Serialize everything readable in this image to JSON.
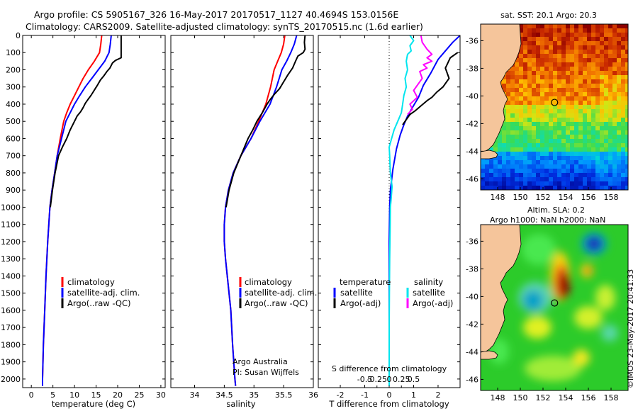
{
  "header": {
    "line1": "Argo profile: CS 5905167_326 16-May-2017 20170517_1127 40.4694S 153.0156E",
    "line2": "Climatology: CARS2009. Satellite-adjusted climatology: synTS_20170515.nc (1.6d earlier)"
  },
  "colors": {
    "climatology": "#ff0000",
    "satellite": "#0000ff",
    "argo": "#000000",
    "sal_satellite": "#00e5ee",
    "sal_argo": "#ff00ff",
    "land": "#f5c59b"
  },
  "chart_data": [
    {
      "id": "temperature",
      "type": "line",
      "xlabel": "temperature (deg C)",
      "xlim": [
        -2,
        31
      ],
      "xticks": [
        0,
        5,
        10,
        15,
        20,
        25,
        30
      ],
      "xtick_labels": [
        "0",
        "5",
        "10",
        "15",
        "20",
        "25",
        "30"
      ],
      "ylim": [
        2050,
        0
      ],
      "yticks": [
        0,
        100,
        200,
        300,
        400,
        500,
        600,
        700,
        800,
        900,
        1000,
        1100,
        1200,
        1300,
        1400,
        1500,
        1600,
        1700,
        1800,
        1900,
        2000
      ],
      "ytick_labels": [
        "0",
        "100",
        "200",
        "300",
        "400",
        "500",
        "600",
        "700",
        "800",
        "900",
        "1000",
        "1100",
        "1200",
        "1300",
        "1400",
        "1500",
        "1600",
        "1700",
        "1800",
        "1900",
        "2000"
      ],
      "legend": [
        "climatology",
        "satellite-adj. clim.",
        "Argo(..raw -QC)"
      ],
      "series": [
        {
          "name": "climatology",
          "color": "#ff0000",
          "points": [
            [
              16.3,
              0
            ],
            [
              16.1,
              50
            ],
            [
              15.8,
              100
            ],
            [
              14.6,
              150
            ],
            [
              13.2,
              200
            ],
            [
              12.0,
              250
            ],
            [
              11.0,
              300
            ],
            [
              10.0,
              350
            ],
            [
              9.0,
              400
            ],
            [
              8.2,
              450
            ],
            [
              7.5,
              500
            ],
            [
              6.7,
              600
            ],
            [
              6.0,
              700
            ],
            [
              5.4,
              800
            ],
            [
              4.8,
              900
            ],
            [
              4.3,
              1000
            ],
            [
              3.8,
              1200
            ],
            [
              3.4,
              1400
            ],
            [
              3.1,
              1600
            ],
            [
              2.8,
              1800
            ],
            [
              2.6,
              2000
            ],
            [
              2.6,
              2040
            ]
          ]
        },
        {
          "name": "satellite-adj. clim.",
          "color": "#0000ff",
          "points": [
            [
              18.5,
              0
            ],
            [
              18.3,
              50
            ],
            [
              18.0,
              100
            ],
            [
              17.0,
              150
            ],
            [
              15.5,
              200
            ],
            [
              14.0,
              250
            ],
            [
              12.5,
              300
            ],
            [
              11.2,
              350
            ],
            [
              10.0,
              400
            ],
            [
              9.0,
              450
            ],
            [
              8.0,
              500
            ],
            [
              7.0,
              600
            ],
            [
              6.0,
              700
            ],
            [
              5.4,
              800
            ],
            [
              4.8,
              900
            ],
            [
              4.3,
              1000
            ],
            [
              3.8,
              1200
            ],
            [
              3.4,
              1400
            ],
            [
              3.1,
              1600
            ],
            [
              2.8,
              1800
            ],
            [
              2.6,
              2000
            ],
            [
              2.6,
              2040
            ]
          ]
        },
        {
          "name": "Argo(..raw -QC)",
          "color": "#000000",
          "points": [
            [
              20.8,
              0
            ],
            [
              20.8,
              50
            ],
            [
              20.8,
              130
            ],
            [
              19.5,
              145
            ],
            [
              18.8,
              160
            ],
            [
              18.2,
              190
            ],
            [
              17.5,
              210
            ],
            [
              16.8,
              235
            ],
            [
              16.0,
              260
            ],
            [
              15.3,
              290
            ],
            [
              14.8,
              310
            ],
            [
              14.3,
              330
            ],
            [
              13.8,
              350
            ],
            [
              13.2,
              370
            ],
            [
              12.5,
              395
            ],
            [
              12.0,
              420
            ],
            [
              11.4,
              445
            ],
            [
              10.6,
              470
            ],
            [
              10.0,
              500
            ],
            [
              9.0,
              550
            ],
            [
              8.2,
              600
            ],
            [
              7.2,
              650
            ],
            [
              6.3,
              700
            ],
            [
              5.5,
              800
            ],
            [
              4.9,
              900
            ],
            [
              4.4,
              1000
            ]
          ]
        }
      ]
    },
    {
      "id": "salinity",
      "type": "line",
      "xlabel": "salinity",
      "xlim": [
        33.6,
        36.0
      ],
      "xticks": [
        34,
        34.5,
        35,
        35.5,
        36
      ],
      "xtick_labels": [
        "34",
        "34.5",
        "35",
        "35.5",
        "36"
      ],
      "ylim": [
        2050,
        0
      ],
      "legend": [
        "climatology",
        "satellite-adj. clim.",
        "Argo(..raw -QC)"
      ],
      "annotation": [
        "Argo Australia",
        "PI: Susan Wijffels"
      ],
      "series": [
        {
          "name": "climatology",
          "color": "#ff0000",
          "points": [
            [
              35.52,
              0
            ],
            [
              35.5,
              50
            ],
            [
              35.46,
              100
            ],
            [
              35.4,
              150
            ],
            [
              35.34,
              200
            ],
            [
              35.28,
              300
            ],
            [
              35.2,
              400
            ],
            [
              35.08,
              500
            ],
            [
              34.95,
              600
            ],
            [
              34.78,
              700
            ],
            [
              34.65,
              800
            ],
            [
              34.57,
              900
            ],
            [
              34.52,
              1000
            ],
            [
              34.5,
              1100
            ],
            [
              34.5,
              1200
            ],
            [
              34.52,
              1300
            ],
            [
              34.55,
              1400
            ],
            [
              34.58,
              1500
            ],
            [
              34.61,
              1600
            ],
            [
              34.64,
              1800
            ],
            [
              34.68,
              2000
            ],
            [
              34.69,
              2040
            ]
          ]
        },
        {
          "name": "satellite-adj. clim.",
          "color": "#0000ff",
          "points": [
            [
              35.72,
              0
            ],
            [
              35.68,
              50
            ],
            [
              35.62,
              100
            ],
            [
              35.55,
              150
            ],
            [
              35.47,
              200
            ],
            [
              35.38,
              300
            ],
            [
              35.27,
              400
            ],
            [
              35.1,
              500
            ],
            [
              34.95,
              600
            ],
            [
              34.78,
              700
            ],
            [
              34.65,
              800
            ],
            [
              34.57,
              900
            ],
            [
              34.52,
              1000
            ],
            [
              34.5,
              1100
            ],
            [
              34.5,
              1200
            ],
            [
              34.52,
              1300
            ],
            [
              34.55,
              1400
            ],
            [
              34.58,
              1500
            ],
            [
              34.61,
              1600
            ],
            [
              34.64,
              1800
            ],
            [
              34.68,
              2000
            ],
            [
              34.69,
              2040
            ]
          ]
        },
        {
          "name": "Argo(..raw -QC)",
          "color": "#000000",
          "points": [
            [
              35.86,
              0
            ],
            [
              35.85,
              40
            ],
            [
              35.86,
              80
            ],
            [
              35.83,
              100
            ],
            [
              35.74,
              120
            ],
            [
              35.7,
              150
            ],
            [
              35.65,
              190
            ],
            [
              35.57,
              230
            ],
            [
              35.5,
              270
            ],
            [
              35.43,
              310
            ],
            [
              35.35,
              340
            ],
            [
              35.28,
              370
            ],
            [
              35.22,
              400
            ],
            [
              35.14,
              450
            ],
            [
              35.05,
              500
            ],
            [
              34.98,
              550
            ],
            [
              34.9,
              600
            ],
            [
              34.78,
              700
            ],
            [
              34.66,
              800
            ],
            [
              34.58,
              900
            ],
            [
              34.53,
              1000
            ]
          ]
        }
      ]
    },
    {
      "id": "difference",
      "type": "line",
      "xlabel": "T difference from climatology",
      "xlim": [
        -2.9,
        2.9
      ],
      "xticks": [
        -2,
        -1,
        0,
        1,
        2
      ],
      "xtick_labels": [
        "-2",
        "-1",
        "0",
        "1",
        "2"
      ],
      "top_xlabel": "S difference from climatology",
      "top_ticks": [
        -0.5,
        -0.25,
        0,
        0.25,
        0.5
      ],
      "top_tick_labels": [
        "-0.5",
        "-0.25",
        "0",
        "0.25",
        "0.5"
      ],
      "ylim": [
        2050,
        0
      ],
      "legend_headers": [
        "temperature",
        "salinity"
      ],
      "legend": [
        "satellite",
        "Argo(-adj)",
        "satellite",
        "Argo(-adj)"
      ],
      "series": [
        {
          "name": "temperature satellite",
          "color": "#0000ff",
          "points": [
            [
              2.9,
              0
            ],
            [
              2.6,
              40
            ],
            [
              2.3,
              90
            ],
            [
              2.0,
              140
            ],
            [
              1.7,
              220
            ],
            [
              1.4,
              290
            ],
            [
              1.2,
              360
            ],
            [
              0.95,
              420
            ],
            [
              0.75,
              470
            ],
            [
              0.6,
              520
            ],
            [
              0.45,
              580
            ],
            [
              0.3,
              660
            ],
            [
              0.15,
              780
            ],
            [
              0.05,
              900
            ],
            [
              0.02,
              1000
            ],
            [
              0.0,
              1200
            ],
            [
              0.0,
              1600
            ],
            [
              0.0,
              2040
            ]
          ]
        },
        {
          "name": "temperature Argo(-adj)",
          "color": "#000000",
          "points": [
            [
              2.8,
              100
            ],
            [
              2.5,
              130
            ],
            [
              2.3,
              190
            ],
            [
              2.45,
              250
            ],
            [
              2.2,
              300
            ],
            [
              1.95,
              330
            ],
            [
              1.75,
              360
            ],
            [
              1.55,
              380
            ],
            [
              1.3,
              410
            ],
            [
              1.05,
              440
            ],
            [
              0.85,
              460
            ],
            [
              0.7,
              490
            ],
            [
              0.55,
              520
            ]
          ]
        },
        {
          "name": "salinity satellite",
          "color": "#00e5ee",
          "points": [
            [
              0.85,
              0
            ],
            [
              1.0,
              30
            ],
            [
              0.85,
              60
            ],
            [
              0.9,
              90
            ],
            [
              0.75,
              110
            ],
            [
              0.7,
              150
            ],
            [
              0.75,
              200
            ],
            [
              0.65,
              250
            ],
            [
              0.7,
              300
            ],
            [
              0.6,
              350
            ],
            [
              0.55,
              400
            ],
            [
              0.5,
              450
            ],
            [
              0.35,
              500
            ],
            [
              0.2,
              550
            ],
            [
              0.1,
              600
            ],
            [
              0.0,
              650
            ],
            [
              0.02,
              700
            ],
            [
              0.05,
              800
            ],
            [
              0.12,
              880
            ],
            [
              0.08,
              950
            ],
            [
              0.05,
              1000
            ],
            [
              0.04,
              1100
            ],
            [
              0.02,
              1300
            ],
            [
              0.01,
              1500
            ],
            [
              0.0,
              1700
            ],
            [
              0.0,
              2040
            ]
          ]
        },
        {
          "name": "salinity Argo(-adj)",
          "color": "#ff00ff",
          "points": [
            [
              1.3,
              0
            ],
            [
              1.35,
              40
            ],
            [
              1.55,
              80
            ],
            [
              1.75,
              110
            ],
            [
              1.55,
              130
            ],
            [
              1.75,
              150
            ],
            [
              1.4,
              170
            ],
            [
              1.55,
              190
            ],
            [
              1.25,
              210
            ],
            [
              1.35,
              250
            ],
            [
              1.2,
              280
            ],
            [
              1.0,
              320
            ],
            [
              1.15,
              360
            ],
            [
              0.85,
              400
            ],
            [
              0.95,
              430
            ],
            [
              0.75,
              460
            ]
          ]
        }
      ]
    },
    {
      "id": "sst-map",
      "type": "heatmap",
      "title": "sat. SST: 20.1 Argo: 20.3",
      "xticks": [
        148,
        150,
        152,
        154,
        156,
        158
      ],
      "xtick_labels": [
        "148",
        "150",
        "152",
        "154",
        "156",
        "158"
      ],
      "yticks": [
        -36,
        -38,
        -40,
        -42,
        -44,
        -46
      ],
      "ytick_labels": [
        "-36",
        "-38",
        "-40",
        "-42",
        "-44",
        "-46"
      ],
      "xlim": [
        146.5,
        159.5
      ],
      "ylim": [
        -46.8,
        -34.8
      ],
      "marker": [
        153.0156,
        -40.4694
      ]
    },
    {
      "id": "sla-map",
      "type": "heatmap",
      "title_line1": "Altim. SLA: 0.2",
      "title_line2": "Argo h1000: NaN h2000: NaN",
      "xticks": [
        148,
        150,
        152,
        154,
        156,
        158
      ],
      "xtick_labels": [
        "148",
        "150",
        "152",
        "154",
        "156",
        "158"
      ],
      "yticks": [
        -36,
        -38,
        -40,
        -42,
        -44,
        -46
      ],
      "ytick_labels": [
        "-36",
        "-38",
        "-40",
        "-42",
        "-44",
        "-46"
      ],
      "xlim": [
        146.5,
        159.5
      ],
      "ylim": [
        -46.8,
        -34.8
      ],
      "marker": [
        153.0156,
        -40.4694
      ]
    }
  ],
  "footer": {
    "stamp": "©IMOS 23-May-2017 20:41:33"
  }
}
